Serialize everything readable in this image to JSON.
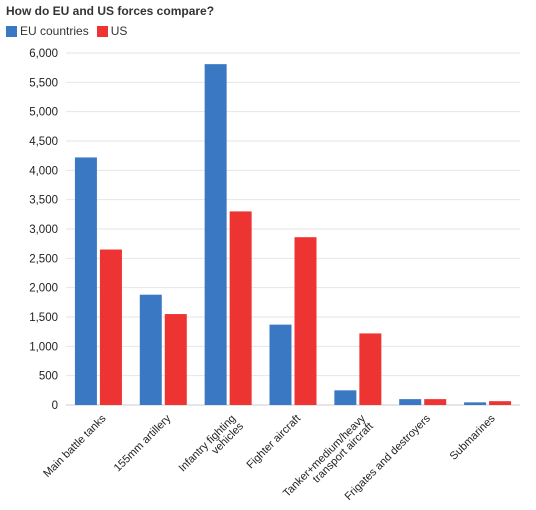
{
  "chart_data": {
    "type": "bar",
    "title": "How do EU and US forces compare?",
    "categories": [
      [
        "Main battle tanks"
      ],
      [
        "155mm artillery"
      ],
      [
        "Infantry fighting",
        "vehicles"
      ],
      [
        "Fighter aircraft"
      ],
      [
        "Tanker+medium/heavy",
        "transport aircraft"
      ],
      [
        "Frigates and destroyers"
      ],
      [
        "Submarines"
      ]
    ],
    "series": [
      {
        "name": "EU countries",
        "color": "#3b78c3",
        "values": [
          4220,
          1880,
          5810,
          1370,
          250,
          100,
          45
        ]
      },
      {
        "name": "US",
        "color": "#ee3333",
        "values": [
          2650,
          1550,
          3300,
          2860,
          1220,
          100,
          65
        ]
      }
    ],
    "ylim": [
      0,
      6000
    ],
    "yticks": [
      "0",
      "500",
      "1,000",
      "1,500",
      "2,000",
      "2,500",
      "3,000",
      "3,500",
      "4,000",
      "4,500",
      "5,000",
      "5,500",
      "6,000"
    ],
    "grid": true,
    "legend_position": "top-left"
  }
}
